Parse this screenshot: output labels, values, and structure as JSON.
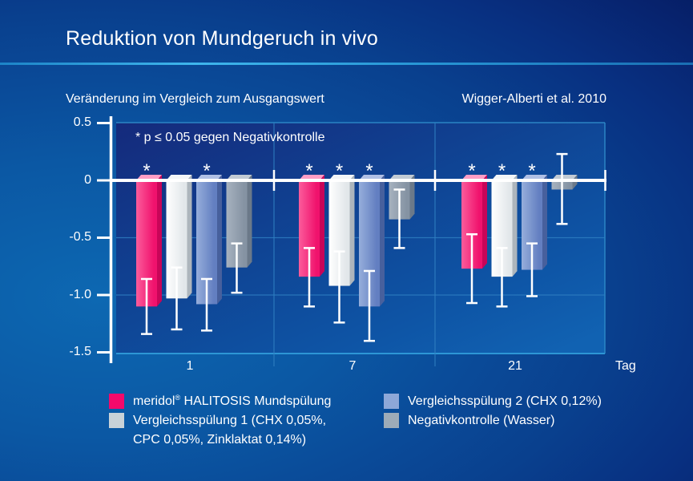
{
  "header": {
    "title": "Reduktion von Mundgeruch in vivo",
    "subtitle": "Veränderung im Vergleich zum Ausgangswert",
    "citation": "Wigger-Alberti et al. 2010"
  },
  "chart": {
    "note": "* p ≤ 0.05 gegen Negativkontrolle",
    "significance_marker": "*",
    "y_tick_labels": [
      "0.5",
      "0",
      "-0.5",
      "-1.0",
      "-1.5"
    ],
    "x_tick_labels": [
      "1",
      "7",
      "21"
    ],
    "x_axis_label": "Tag"
  },
  "chart_data": {
    "type": "bar",
    "title": "Reduktion von Mundgeruch in vivo",
    "ylabel": "Veränderung im Vergleich zum Ausgangswert",
    "xlabel": "Tag",
    "categories": [
      "1",
      "7",
      "21"
    ],
    "ylim": [
      -1.5,
      0.5
    ],
    "yticks": [
      0.5,
      0,
      -0.5,
      -1.0,
      -1.5
    ],
    "grid": true,
    "legend_position": "bottom",
    "series": [
      {
        "name": "meridol® HALITOSIS Mundspülung",
        "key": "meridol",
        "color": "#f0126d",
        "color_light": "#fb5c9b",
        "color_dark": "#c80558",
        "color_top": "#ff9ec5",
        "values": [
          -1.1,
          -0.84,
          -0.77
        ],
        "err_high": [
          -0.86,
          -0.59,
          -0.47
        ],
        "err_low": [
          -1.34,
          -1.1,
          -1.07
        ],
        "significant": [
          true,
          true,
          true
        ]
      },
      {
        "name": "Vergleichsspülung 1 (CHX 0,05%, CPC 0,05%, Zinklaktat 0,14%)",
        "key": "vergleichsspuelung-1",
        "color": "#e2e7ea",
        "color_light": "#ffffff",
        "color_dark": "#adb5bc",
        "color_top": "#f3f6f8",
        "values": [
          -1.03,
          -0.92,
          -0.84
        ],
        "err_high": [
          -0.76,
          -0.62,
          -0.59
        ],
        "err_low": [
          -1.3,
          -1.24,
          -1.1
        ],
        "significant": [
          false,
          true,
          true
        ]
      },
      {
        "name": "Vergleichsspülung 2 (CHX 0,12%)",
        "key": "vergleichsspuelung-2",
        "color": "#637fc1",
        "color_light": "#96aedb",
        "color_dark": "#47609d",
        "color_top": "#b0c0e5",
        "values": [
          -1.08,
          -1.1,
          -0.78
        ],
        "err_high": [
          -0.86,
          -0.79,
          -0.55
        ],
        "err_low": [
          -1.31,
          -1.4,
          -1.01
        ],
        "significant": [
          true,
          true,
          true
        ]
      },
      {
        "name": "Negativkontrolle (Wasser)",
        "key": "negativkontrolle",
        "color": "#8593a3",
        "color_light": "#a7b2bf",
        "color_dark": "#6b7989",
        "color_top": "#c2cbd4",
        "values": [
          -0.76,
          -0.34,
          -0.08
        ],
        "err_high": [
          -0.55,
          -0.08,
          0.23
        ],
        "err_low": [
          -0.98,
          -0.59,
          -0.38
        ],
        "significant": [
          false,
          false,
          false
        ]
      }
    ]
  },
  "legend": {
    "items": [
      {
        "brand": "meridol",
        "sup": "®",
        "rest": " HALITOSIS Mundspülung",
        "color": "#f4096b"
      },
      {
        "label": "Vergleichsspülung 1 (CHX 0,05%,",
        "label_line2": "CPC 0,05%, Zinklaktat 0,14%)",
        "color": "#c9d2d8"
      },
      {
        "label": "Vergleichsspülung 2 (CHX 0,12%)",
        "color": "#8ea8d8"
      },
      {
        "label": "Negativkontrolle (Wasser)",
        "color": "#9dabb8"
      }
    ]
  }
}
